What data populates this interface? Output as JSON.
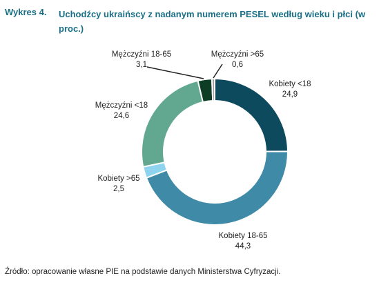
{
  "header": {
    "prefix": "Wykres 4.",
    "title": "Uchodźcy ukraińscy z nadanym numerem PESEL według wieku i płci (w proc.)"
  },
  "chart_data": {
    "type": "pie",
    "variant": "donut",
    "title": "Uchodźcy ukraińscy z nadanym numerem PESEL według wieku i płci (w proc.)",
    "slices": [
      {
        "label": "Kobiety <18",
        "value": 24.9,
        "value_label": "24,9",
        "color": "#0e4a5e"
      },
      {
        "label": "Kobiety 18-65",
        "value": 44.3,
        "value_label": "44,3",
        "color": "#3f8aa6"
      },
      {
        "label": "Kobiety >65",
        "value": 2.5,
        "value_label": "2,5",
        "color": "#8fd4ee"
      },
      {
        "label": "Mężczyźni <18",
        "value": 24.6,
        "value_label": "24,6",
        "color": "#62a78f"
      },
      {
        "label": "Mężczyźni 18-65",
        "value": 3.1,
        "value_label": "3,1",
        "color": "#0d3d24"
      },
      {
        "label": "Mężczyźni >65",
        "value": 0.6,
        "value_label": "0,6",
        "color": "#9e9e9e"
      }
    ]
  },
  "footer": {
    "source": "Źródło: opracowanie własne PIE na podstawie danych Ministerstwa Cyfryzacji."
  }
}
